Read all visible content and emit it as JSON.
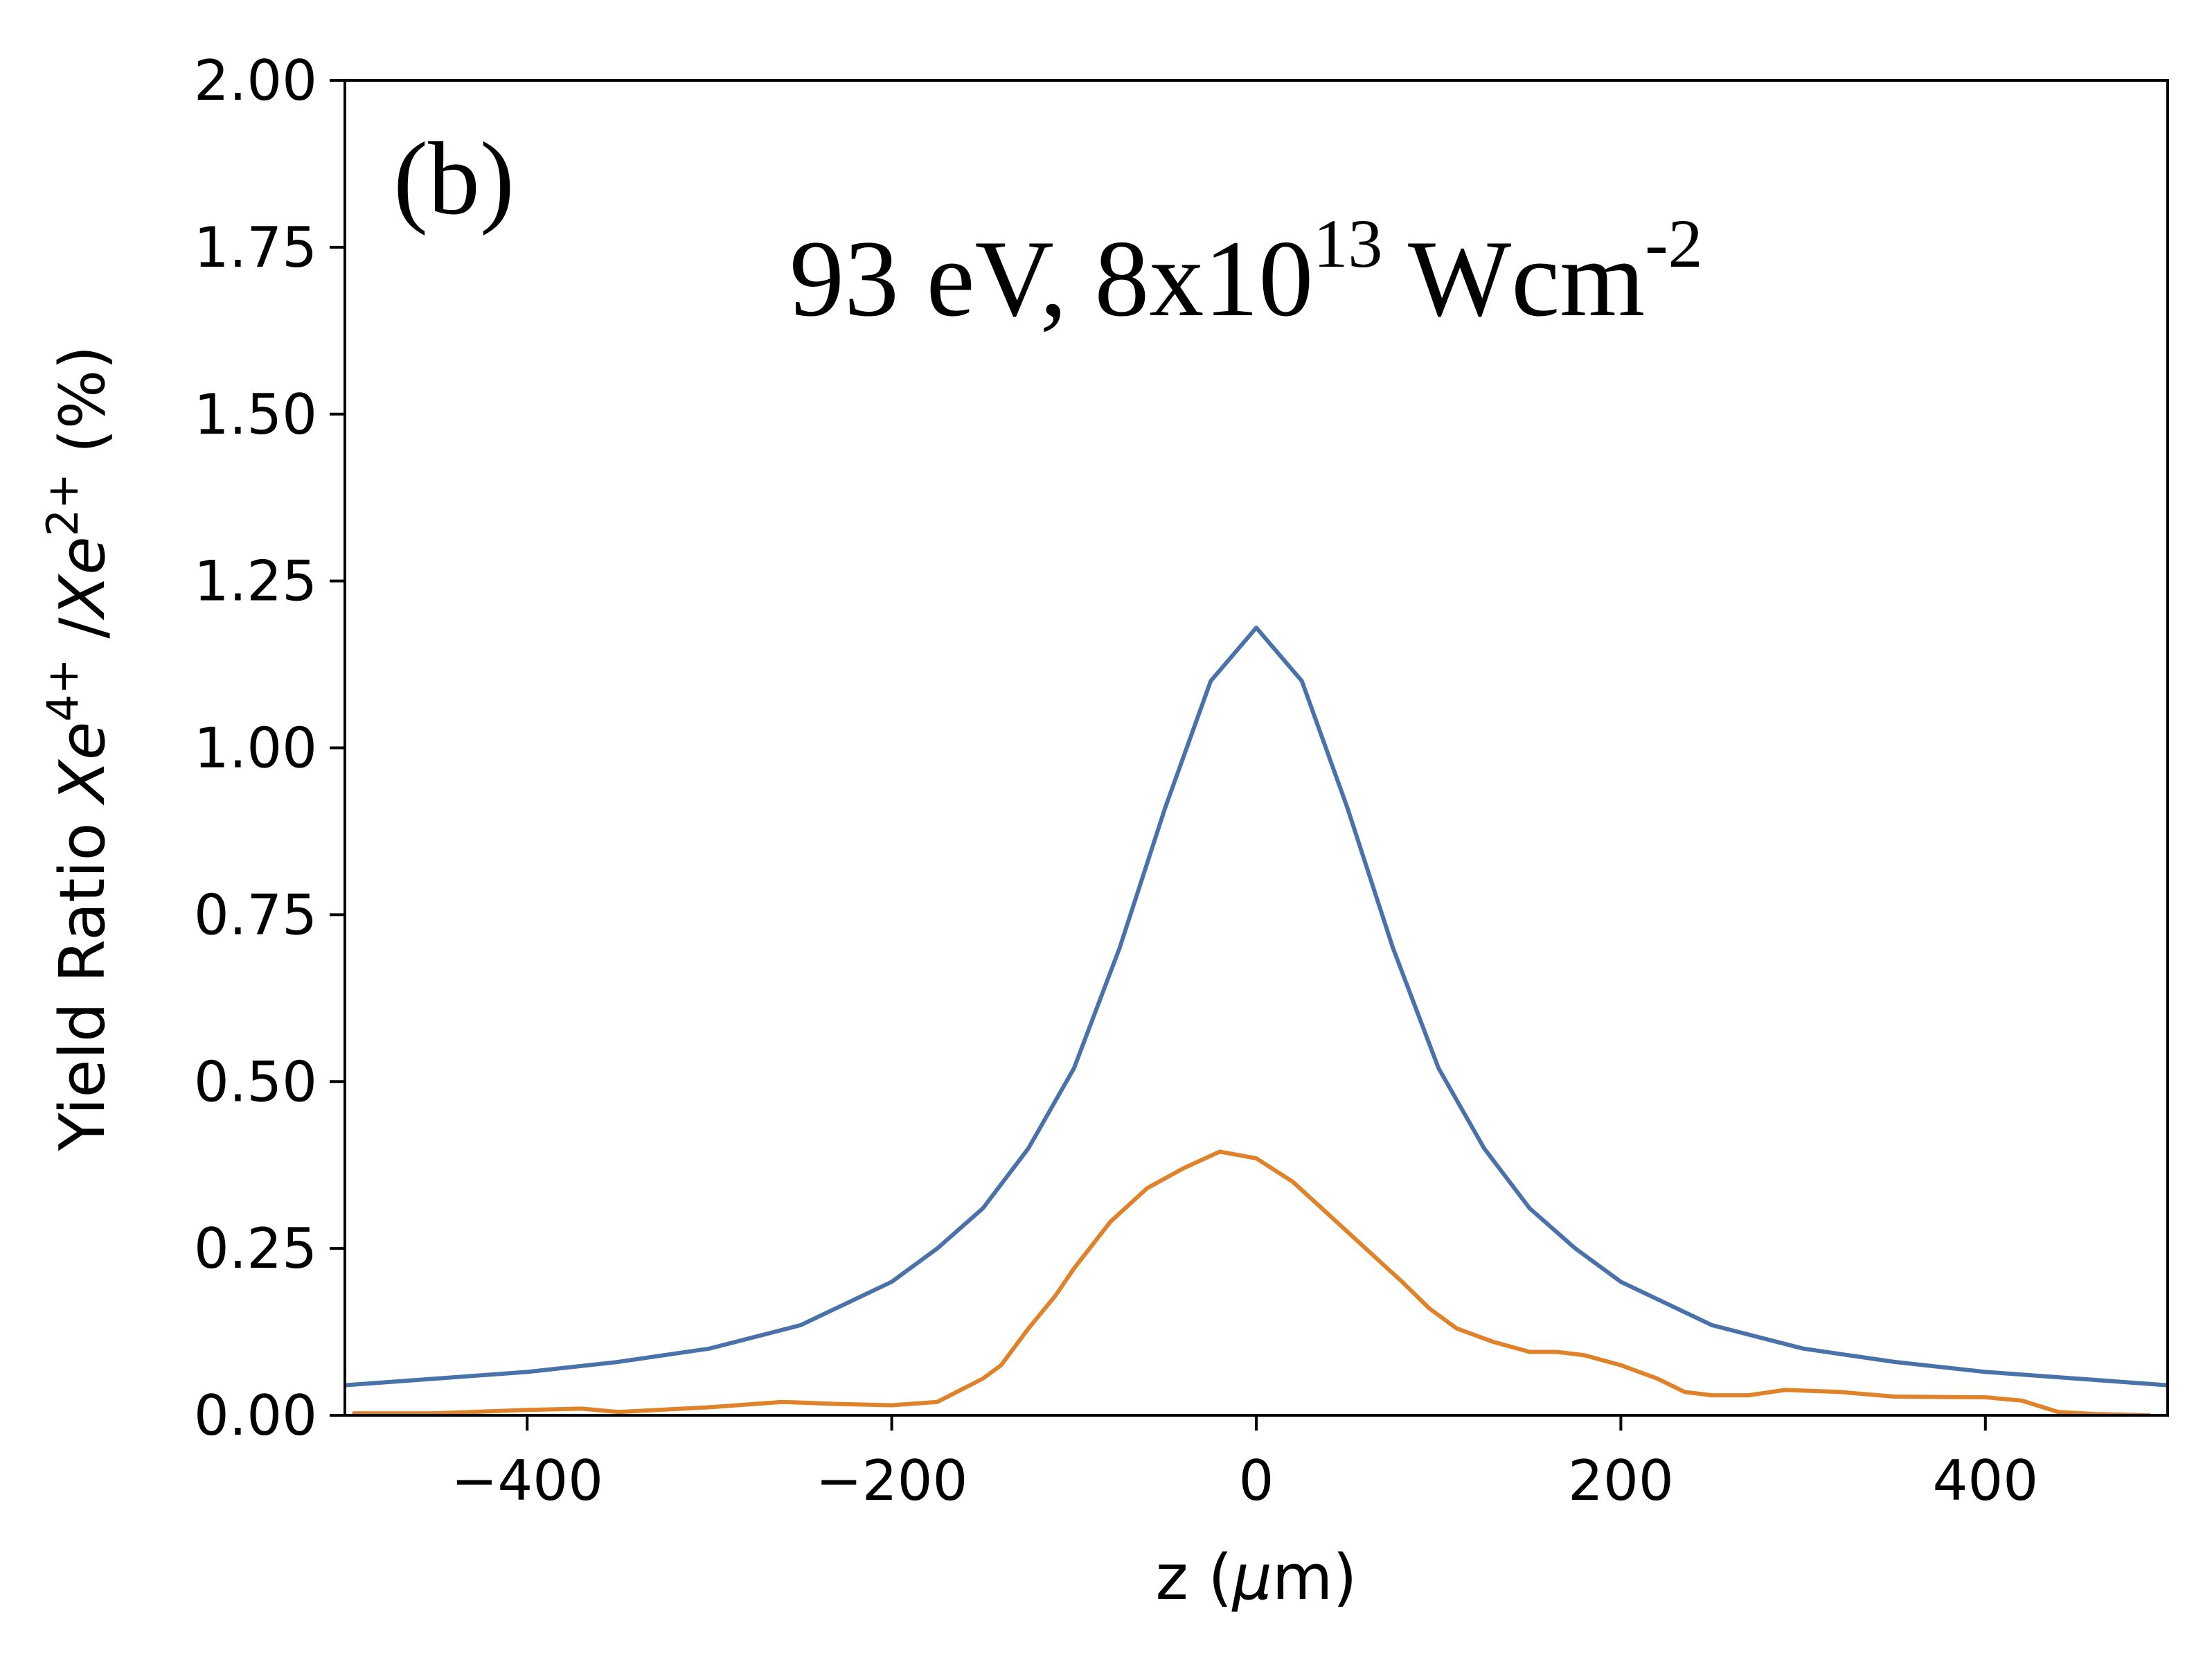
{
  "chart_data": {
    "type": "line",
    "panel_label": "(b)",
    "title": {
      "main": "93 eV, 8x10",
      "exponent": "13",
      "unit": " Wcm",
      "unit_exponent": "-2"
    },
    "xlabel": {
      "prefix": "z (",
      "symbol": "μ",
      "suffix": "m)"
    },
    "ylabel": {
      "prefix": "Yield Ratio ",
      "ion1": "Xe",
      "ion1_charge": "4+",
      "separator": " /",
      "ion2": "Xe",
      "ion2_charge": "2+",
      "unit": "  (%)"
    },
    "xlim": [
      -500,
      500
    ],
    "ylim": [
      0,
      2
    ],
    "xticks": [
      -400,
      -200,
      0,
      200,
      400
    ],
    "xtick_labels": [
      "−400",
      "−200",
      "0",
      "200",
      "400"
    ],
    "yticks": [
      0,
      0.25,
      0.5,
      0.75,
      1.0,
      1.25,
      1.5,
      1.75,
      2.0
    ],
    "ytick_labels": [
      "0.00",
      "0.25",
      "0.50",
      "0.75",
      "1.00",
      "1.25",
      "1.50",
      "1.75",
      "2.00"
    ],
    "grid": false,
    "series": [
      {
        "name": "blue-curve",
        "color": "#4a72aa",
        "x": [
          -500,
          -450,
          -400,
          -350,
          -300,
          -250,
          -200,
          -175,
          -150,
          -125,
          -100,
          -75,
          -50,
          -25,
          0,
          25,
          50,
          75,
          100,
          125,
          150,
          175,
          200,
          250,
          300,
          350,
          400,
          450,
          500
        ],
        "y": [
          0.045,
          0.055,
          0.065,
          0.08,
          0.1,
          0.135,
          0.2,
          0.25,
          0.31,
          0.4,
          0.52,
          0.7,
          0.91,
          1.1,
          1.18,
          1.1,
          0.91,
          0.7,
          0.52,
          0.4,
          0.31,
          0.25,
          0.2,
          0.135,
          0.1,
          0.08,
          0.065,
          0.055,
          0.045
        ]
      },
      {
        "name": "orange-curve",
        "color": "#e0822a",
        "x": [
          -495,
          -450,
          -400,
          -370,
          -350,
          -300,
          -260,
          -230,
          -200,
          -175,
          -150,
          -140,
          -125,
          -110,
          -100,
          -80,
          -60,
          -40,
          -20,
          0,
          20,
          40,
          60,
          80,
          95,
          110,
          130,
          150,
          165,
          180,
          200,
          220,
          235,
          250,
          270,
          290,
          320,
          350,
          400,
          420,
          440,
          460,
          490
        ],
        "y": [
          0.003,
          0.003,
          0.008,
          0.01,
          0.005,
          0.012,
          0.02,
          0.017,
          0.015,
          0.02,
          0.055,
          0.075,
          0.13,
          0.18,
          0.22,
          0.29,
          0.34,
          0.37,
          0.395,
          0.385,
          0.35,
          0.3,
          0.25,
          0.2,
          0.16,
          0.13,
          0.11,
          0.095,
          0.095,
          0.09,
          0.075,
          0.055,
          0.035,
          0.03,
          0.03,
          0.038,
          0.035,
          0.028,
          0.027,
          0.022,
          0.005,
          0.002,
          0.0
        ]
      }
    ]
  }
}
